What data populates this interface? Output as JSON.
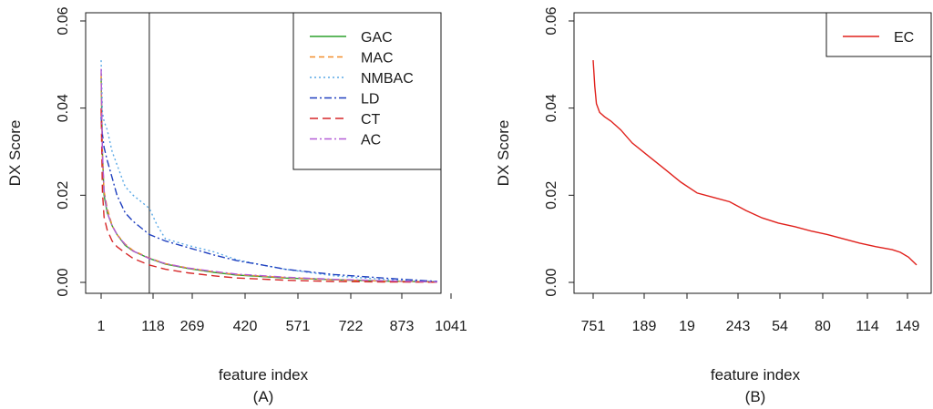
{
  "chart_data": [
    {
      "type": "line",
      "panel_label": "(A)",
      "xlabel": "feature index",
      "ylabel": "DX Score",
      "ylim": [
        0,
        0.06
      ],
      "y_ticks": [
        "0.00",
        "0.02",
        "0.04",
        "0.06"
      ],
      "x_tick_labels": [
        "1",
        "118",
        "269",
        "420",
        "571",
        "722",
        "873",
        "1041"
      ],
      "xlim": [
        1,
        1041
      ],
      "legend_position": "top-right",
      "vertical_line_at": 150,
      "grid": false,
      "series": [
        {
          "name": "GAC",
          "color": "#2ca02c",
          "dash": "",
          "x": [
            1,
            5,
            10,
            20,
            35,
            50,
            75,
            100,
            150,
            200,
            269,
            350,
            420,
            571,
            722,
            873,
            1041
          ],
          "y": [
            0.047,
            0.03,
            0.02,
            0.016,
            0.013,
            0.011,
            0.0085,
            0.0072,
            0.0055,
            0.0042,
            0.0032,
            0.0023,
            0.0017,
            0.001,
            0.0006,
            0.0003,
            0.0001
          ]
        },
        {
          "name": "MAC",
          "color": "#f28e2b",
          "dash": "6,4",
          "x": [
            1,
            5,
            10,
            20,
            35,
            50,
            75,
            100,
            150,
            200,
            269,
            350,
            420,
            571,
            722,
            873,
            1041
          ],
          "y": [
            0.048,
            0.029,
            0.021,
            0.017,
            0.013,
            0.011,
            0.0088,
            0.0073,
            0.0056,
            0.0043,
            0.0033,
            0.0024,
            0.0018,
            0.0011,
            0.0006,
            0.0003,
            0.0001
          ]
        },
        {
          "name": "NMBAC",
          "color": "#5aa9e6",
          "dash": "2,3",
          "x": [
            1,
            5,
            10,
            20,
            35,
            50,
            75,
            100,
            150,
            175,
            200,
            269,
            350,
            420,
            500,
            571,
            722,
            873,
            1041
          ],
          "y": [
            0.051,
            0.039,
            0.037,
            0.035,
            0.03,
            0.027,
            0.022,
            0.02,
            0.017,
            0.013,
            0.01,
            0.0085,
            0.007,
            0.0052,
            0.004,
            0.003,
            0.0015,
            0.0007,
            0.0002
          ]
        },
        {
          "name": "LD",
          "color": "#1f3fbf",
          "dash": "8,3,2,3",
          "x": [
            1,
            5,
            10,
            20,
            35,
            50,
            75,
            100,
            150,
            200,
            269,
            350,
            420,
            500,
            571,
            722,
            873,
            1041
          ],
          "y": [
            0.038,
            0.034,
            0.031,
            0.028,
            0.024,
            0.02,
            0.016,
            0.014,
            0.011,
            0.0095,
            0.008,
            0.0063,
            0.005,
            0.004,
            0.003,
            0.0018,
            0.001,
            0.0002
          ]
        },
        {
          "name": "CT",
          "color": "#d62728",
          "dash": "9,5",
          "x": [
            1,
            5,
            10,
            20,
            35,
            50,
            75,
            100,
            150,
            200,
            269,
            350,
            420,
            571,
            722,
            873,
            1041
          ],
          "y": [
            0.04,
            0.021,
            0.015,
            0.012,
            0.0095,
            0.0082,
            0.0068,
            0.0055,
            0.004,
            0.003,
            0.0022,
            0.0015,
            0.001,
            0.0005,
            0.0002,
            0.0001,
            5e-05
          ]
        },
        {
          "name": "AC",
          "color": "#b45bd6",
          "dash": "8,3,2,3",
          "x": [
            1,
            5,
            10,
            20,
            35,
            50,
            75,
            100,
            150,
            200,
            269,
            350,
            420,
            571,
            722,
            873,
            1041
          ],
          "y": [
            0.049,
            0.03,
            0.021,
            0.016,
            0.013,
            0.011,
            0.0087,
            0.0072,
            0.0055,
            0.0043,
            0.0033,
            0.0025,
            0.0019,
            0.0012,
            0.0007,
            0.0004,
            0.0001
          ]
        }
      ]
    },
    {
      "type": "line",
      "panel_label": "(B)",
      "xlabel": "feature index",
      "ylabel": "DX Score",
      "ylim": [
        0,
        0.06
      ],
      "y_ticks": [
        "0.00",
        "0.02",
        "0.04",
        "0.06"
      ],
      "x_tick_labels": [
        "751",
        "189",
        "19",
        "243",
        "54",
        "80",
        "114",
        "149"
      ],
      "xlim": [
        1,
        200
      ],
      "legend_position": "top-right",
      "grid": false,
      "series": [
        {
          "name": "EC",
          "color": "#e0201b",
          "dash": "",
          "x": [
            1,
            2,
            3,
            5,
            8,
            12,
            18,
            25,
            35,
            45,
            55,
            65,
            75,
            85,
            95,
            105,
            115,
            125,
            135,
            145,
            155,
            165,
            175,
            185,
            190,
            195,
            200
          ],
          "y": [
            0.051,
            0.045,
            0.041,
            0.039,
            0.038,
            0.037,
            0.035,
            0.032,
            0.029,
            0.026,
            0.023,
            0.0205,
            0.0195,
            0.0185,
            0.0165,
            0.0148,
            0.0136,
            0.0128,
            0.0118,
            0.011,
            0.01,
            0.009,
            0.0082,
            0.0075,
            0.0069,
            0.0058,
            0.004
          ]
        }
      ]
    }
  ]
}
